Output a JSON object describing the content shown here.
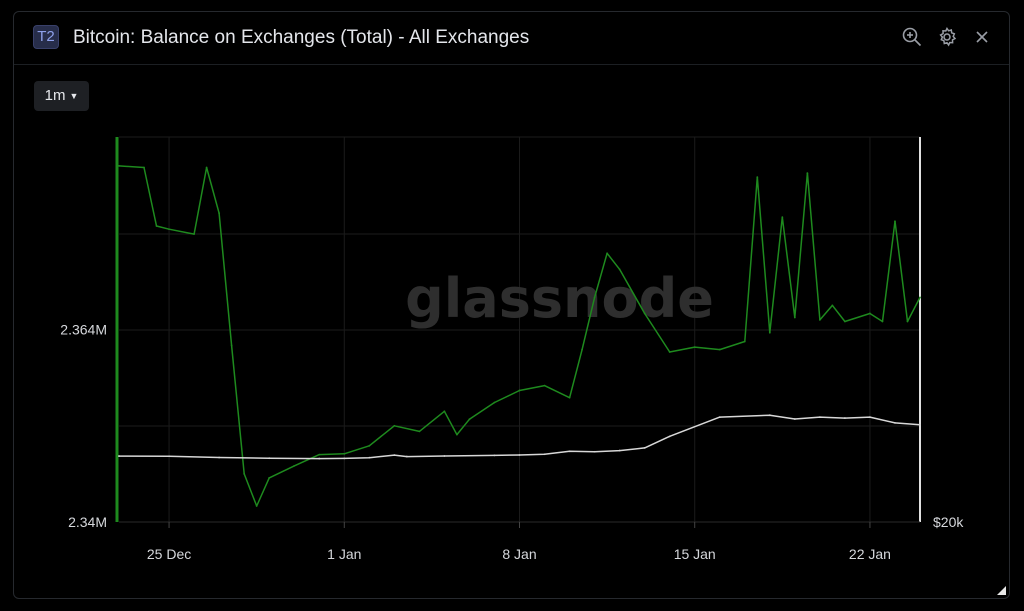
{
  "header": {
    "badge": "T2",
    "title": "Bitcoin: Balance on Exchanges (Total) - All Exchanges",
    "icons": [
      "zoom-icon",
      "gear-icon",
      "close-icon"
    ]
  },
  "controls": {
    "interval": "1m"
  },
  "watermark": "glassnode",
  "colors": {
    "balance_line": "#1e8a1e",
    "price_line": "#d8d8d8",
    "background": "#000000",
    "grid": "#1b1b1b"
  },
  "chart_data": {
    "type": "line",
    "title": "Bitcoin: Balance on Exchanges (Total) - All Exchanges",
    "xlabel": "",
    "ylabel": "",
    "x_ticks": [
      "25 Dec",
      "1 Jan",
      "8 Jan",
      "15 Jan",
      "22 Jan"
    ],
    "x_range": [
      "2022-12-23",
      "2023-01-24"
    ],
    "y_left_ticks": [
      "2.364M",
      "2.34M"
    ],
    "y_left_range": [
      2.34,
      2.388
    ],
    "y_left_unit": "M BTC",
    "y_right_ticks": [
      "$20k"
    ],
    "legend": "none",
    "grid": true,
    "series": [
      {
        "axis": "left",
        "color": "#1e8a1e",
        "x": [
          "2022-12-23",
          "2022-12-24",
          "2022-12-24T12",
          "2022-12-25",
          "2022-12-26",
          "2022-12-26T12",
          "2022-12-27",
          "2022-12-27T12",
          "2022-12-28",
          "2022-12-28T12",
          "2022-12-29",
          "2022-12-30",
          "2022-12-31",
          "2023-01-01",
          "2023-01-02",
          "2023-01-03",
          "2023-01-04",
          "2023-01-05",
          "2023-01-05T12",
          "2023-01-06",
          "2023-01-07",
          "2023-01-08",
          "2023-01-09",
          "2023-01-10",
          "2023-01-10T12",
          "2023-01-11",
          "2023-01-11T12",
          "2023-01-12",
          "2023-01-13",
          "2023-01-14",
          "2023-01-15",
          "2023-01-16",
          "2023-01-17",
          "2023-01-17T12",
          "2023-01-18",
          "2023-01-18T12",
          "2023-01-19",
          "2023-01-19T12",
          "2023-01-20",
          "2023-01-20T12",
          "2023-01-21",
          "2023-01-22",
          "2023-01-22T12",
          "2023-01-23",
          "2023-01-23T12",
          "2023-01-24"
        ],
        "y": [
          2.3844,
          2.3842,
          2.3769,
          2.3765,
          2.3759,
          2.3842,
          2.3785,
          2.362,
          2.346,
          2.342,
          2.3455,
          2.347,
          2.3484,
          2.3485,
          2.3495,
          2.352,
          2.3513,
          2.3538,
          2.3509,
          2.3528,
          2.3549,
          2.3564,
          2.357,
          2.3555,
          2.3615,
          2.368,
          2.3735,
          2.3715,
          2.366,
          2.3612,
          2.3618,
          2.3615,
          2.3625,
          2.383,
          2.3636,
          2.378,
          2.3655,
          2.3835,
          2.3652,
          2.367,
          2.365,
          2.366,
          2.365,
          2.3775,
          2.365,
          2.368
        ]
      },
      {
        "axis": "right",
        "color": "#d8d8d8",
        "x": [
          "2022-12-23",
          "2022-12-25",
          "2022-12-27",
          "2022-12-29",
          "2022-12-31",
          "2023-01-01",
          "2023-01-02",
          "2023-01-03",
          "2023-01-03T12",
          "2023-01-05",
          "2023-01-07",
          "2023-01-08",
          "2023-01-09",
          "2023-01-10",
          "2023-01-11",
          "2023-01-12",
          "2023-01-13",
          "2023-01-14",
          "2023-01-16",
          "2023-01-18",
          "2023-01-19",
          "2023-01-20",
          "2023-01-21",
          "2023-01-22",
          "2023-01-23",
          "2023-01-24"
        ],
        "y": [
          16850,
          16830,
          16700,
          16630,
          16590,
          16610,
          16680,
          16950,
          16800,
          16860,
          16920,
          16960,
          17040,
          17350,
          17300,
          17420,
          17700,
          18900,
          20900,
          21100,
          20700,
          20900,
          20800,
          20900,
          20300,
          20100
        ]
      }
    ]
  }
}
